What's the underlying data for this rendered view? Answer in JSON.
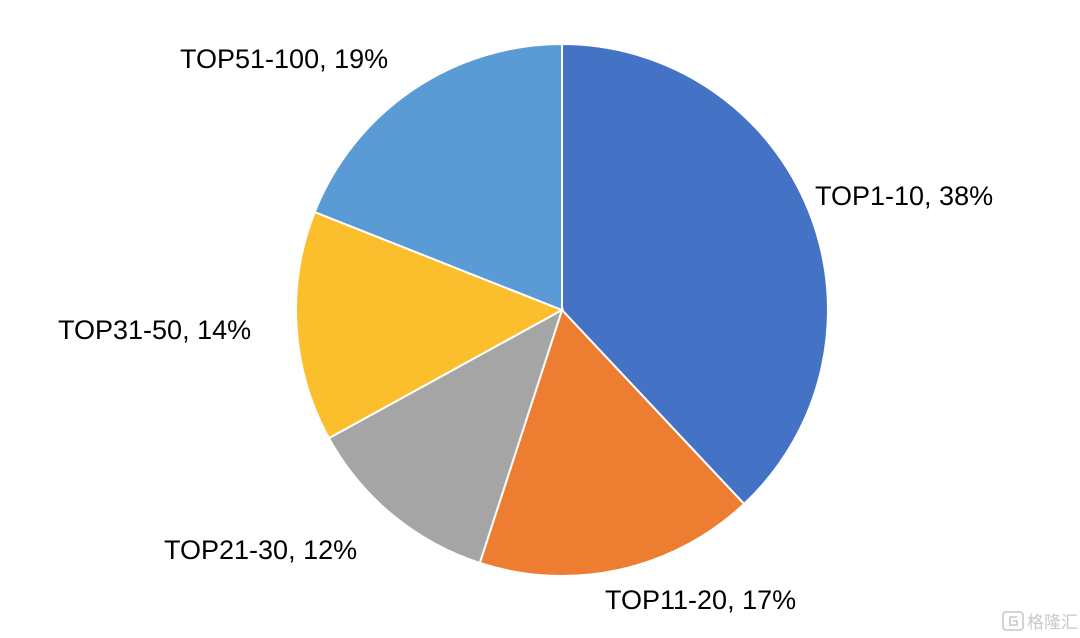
{
  "chart_data": {
    "type": "pie",
    "start_angle_deg": 0,
    "direction": "clockwise",
    "slices": [
      {
        "category": "TOP1-10",
        "value": 38,
        "label": "TOP1-10, 38%",
        "color": "#4472C4"
      },
      {
        "category": "TOP11-20",
        "value": 17,
        "label": "TOP11-20, 17%",
        "color": "#ED7D31"
      },
      {
        "category": "TOP21-30",
        "value": 12,
        "label": "TOP21-30, 12%",
        "color": "#A5A5A5"
      },
      {
        "category": "TOP31-50",
        "value": 14,
        "label": "TOP31-50, 14%",
        "color": "#FBBF2E"
      },
      {
        "category": "TOP51-100",
        "value": 19,
        "label": "TOP51-100, 19%",
        "color": "#5B9BD5"
      }
    ]
  },
  "watermark": {
    "text": "格隆汇",
    "icon": "gelonghui-logo-icon"
  }
}
